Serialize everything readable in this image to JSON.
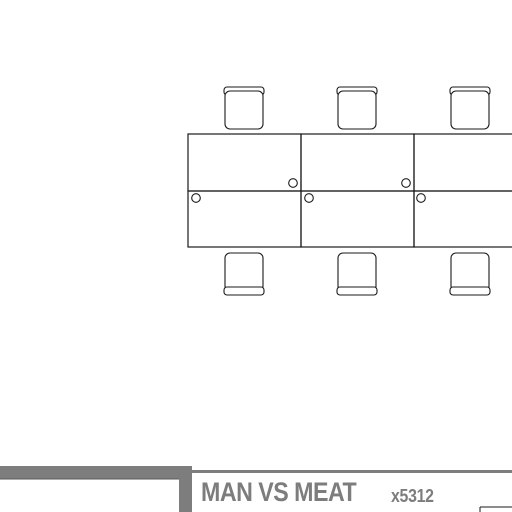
{
  "room": {
    "name": "MAN VS MEAT",
    "number": "x5312"
  },
  "colors": {
    "line": "#1a1a1a",
    "wall": "#7d7d7d",
    "label": "#7d7d7d",
    "background": "#ffffff"
  },
  "furniture": {
    "chairs_top": 3,
    "chairs_bottom": 3,
    "desks_per_row": 3,
    "desk_rows": 2
  }
}
